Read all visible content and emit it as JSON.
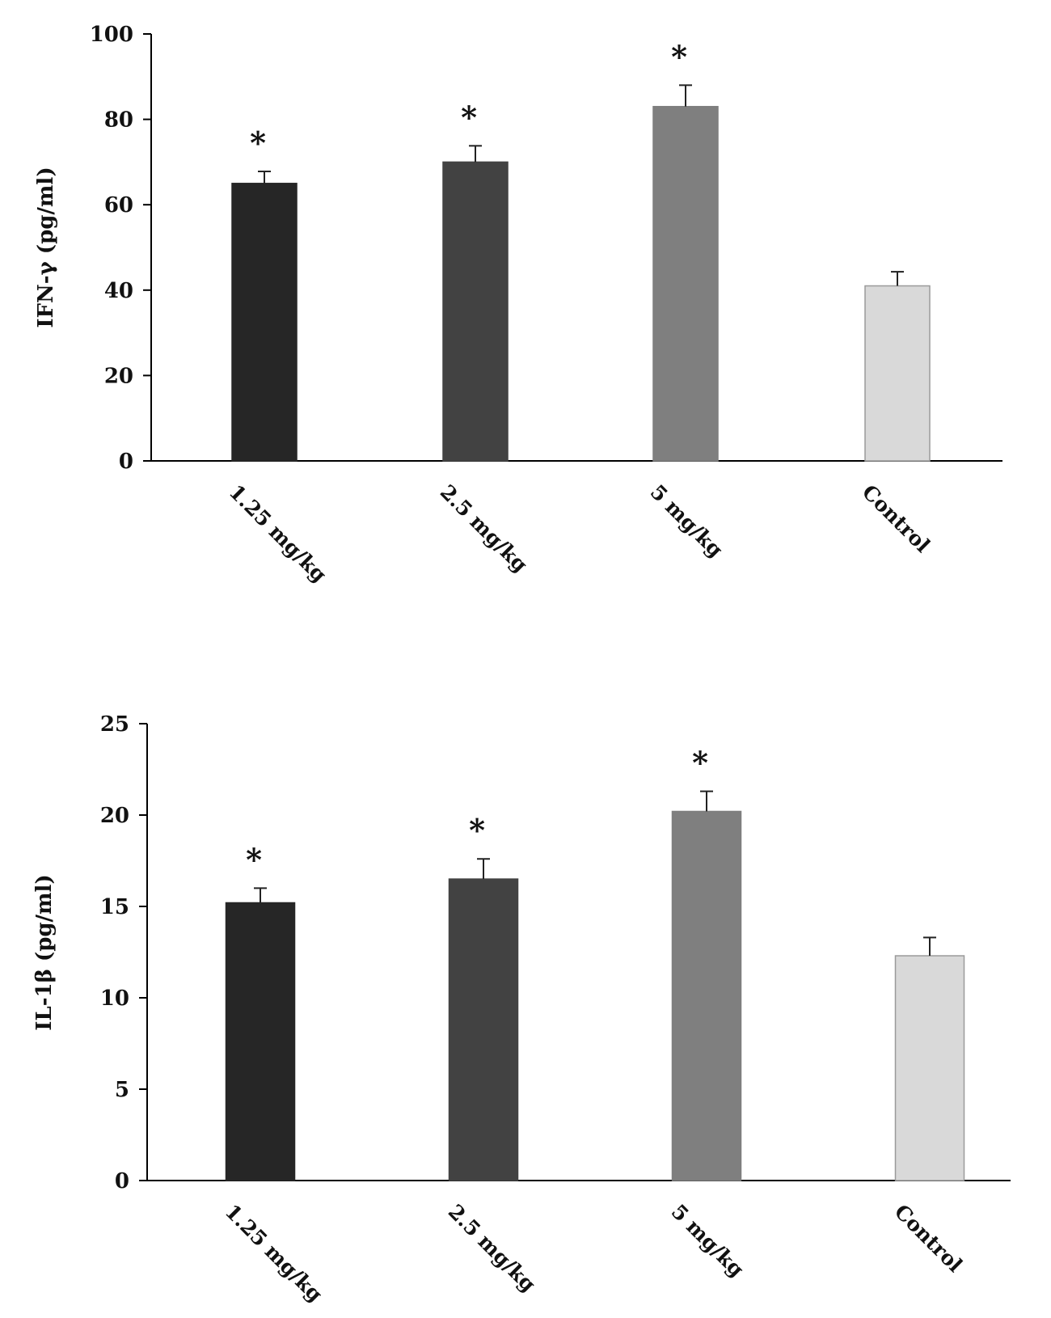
{
  "charts": [
    {
      "type": "bar",
      "ylabel": "IFN-γ (pg/ml)",
      "ylim": [
        0,
        100
      ],
      "yticks": [
        "0",
        "20",
        "40",
        "60",
        "80",
        "100"
      ],
      "categories": [
        "1.25 mg/kg",
        "2.5 mg/kg",
        "5 mg/kg",
        "Control"
      ],
      "values": [
        65,
        70,
        83,
        41
      ],
      "errors": [
        2.8,
        3.8,
        5,
        3.3
      ],
      "significance": [
        "*",
        "*",
        "*",
        ""
      ],
      "colors": [
        "#262626",
        "#424242",
        "#7f7f7f",
        "#d9d9d9"
      ]
    },
    {
      "type": "bar",
      "ylabel": "IL-1β (pg/ml)",
      "ylim": [
        0,
        25
      ],
      "yticks": [
        "0",
        "5",
        "10",
        "15",
        "20",
        "25"
      ],
      "categories": [
        "1.25 mg/kg",
        "2.5 mg/kg",
        "5 mg/kg",
        "Control"
      ],
      "values": [
        15.2,
        16.5,
        20.2,
        12.3
      ],
      "errors": [
        0.8,
        1.1,
        1.1,
        1.0
      ],
      "significance": [
        "*",
        "*",
        "*",
        ""
      ],
      "colors": [
        "#262626",
        "#424242",
        "#7f7f7f",
        "#d9d9d9"
      ]
    }
  ]
}
